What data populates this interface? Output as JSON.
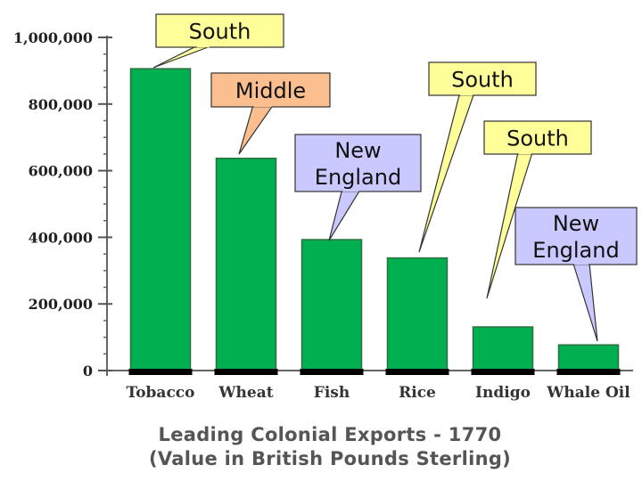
{
  "chart_data": {
    "type": "bar",
    "title": "Leading Colonial Exports - 1770",
    "subtitle": "(Value in British Pounds Sterling)",
    "categories": [
      "Tobacco",
      "Wheat",
      "Fish",
      "Rice",
      "Indigo",
      "Whale Oil"
    ],
    "values": [
      906000,
      637000,
      393000,
      338000,
      131000,
      77000
    ],
    "ylim": [
      0,
      1000000
    ],
    "yticks": [
      0,
      200000,
      400000,
      600000,
      800000,
      1000000
    ],
    "ytick_labels": [
      "0",
      "200,000",
      "400,000",
      "600,000",
      "800,000",
      "1,000,000"
    ],
    "grid": false,
    "bar_color": "#00b050",
    "annotations": [
      {
        "text": "South",
        "target": "Tobacco",
        "color": "#ffff99"
      },
      {
        "text": "Middle",
        "target": "Wheat",
        "color": "#fbbf8f"
      },
      {
        "text": "New England",
        "target": "Fish",
        "color": "#c9c9ff"
      },
      {
        "text": "South",
        "target": "Rice",
        "color": "#ffff99"
      },
      {
        "text": "South",
        "target": "Indigo",
        "color": "#ffff99"
      },
      {
        "text": "New England",
        "target": "Whale Oil",
        "color": "#c9c9ff"
      }
    ]
  }
}
